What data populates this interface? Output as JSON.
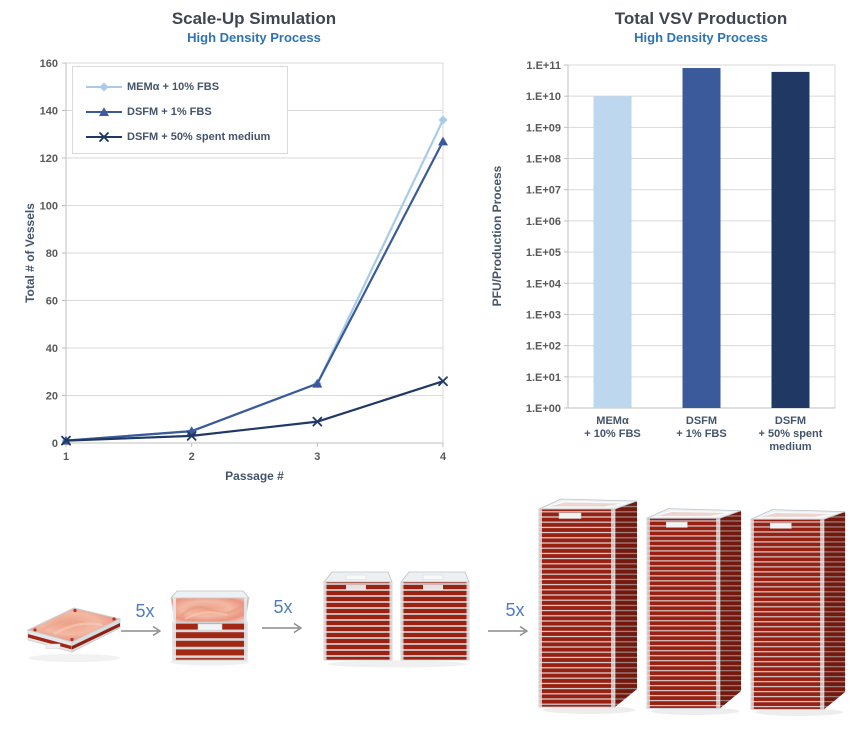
{
  "chart_data": [
    {
      "type": "line",
      "title": "Scale-Up Simulation",
      "subtitle": "High Density Process",
      "xlabel": "Passage #",
      "ylabel": "Total # of Vessels",
      "x": [
        1,
        2,
        3,
        4
      ],
      "ylim": [
        0,
        160
      ],
      "ytick_step": 20,
      "grid": true,
      "legend_position": "top-left-inside",
      "series": [
        {
          "name": "MEMα + 10% FBS",
          "marker": "diamond",
          "color": "#a9cbe8",
          "values": [
            1,
            5,
            25,
            136
          ]
        },
        {
          "name": "DSFM + 1% FBS",
          "marker": "triangle",
          "color": "#3b5a9b",
          "values": [
            1,
            5,
            25,
            127
          ]
        },
        {
          "name": "DSFM + 50% spent medium",
          "marker": "x",
          "color": "#1f3864",
          "values": [
            1,
            3,
            9,
            26
          ]
        }
      ]
    },
    {
      "type": "bar",
      "title": "Total VSV Production",
      "subtitle": "High Density Process",
      "xlabel": "",
      "ylabel": "PFU/Production Process",
      "yscale": "log",
      "ylim": [
        1,
        100000000000
      ],
      "ytick_labels": [
        "1.E+00",
        "1.E+01",
        "1.E+02",
        "1.E+03",
        "1.E+04",
        "1.E+05",
        "1.E+06",
        "1.E+07",
        "1.E+08",
        "1.E+09",
        "1.E+10",
        "1.E+11"
      ],
      "grid": true,
      "categories": [
        [
          "MEMα",
          "+ 10% FBS"
        ],
        [
          "DSFM",
          "+ 1% FBS"
        ],
        [
          "DSFM",
          "+ 50% spent",
          "medium"
        ]
      ],
      "values": [
        10000000000.0,
        80000000000.0,
        60000000000.0
      ],
      "colors": [
        "#bdd7ee",
        "#3b5a9b",
        "#1f3864"
      ]
    }
  ],
  "scale_up": {
    "arrow_labels": [
      "5x",
      "5x",
      "5x"
    ],
    "vessel_icons": [
      "cell-culture-tray-1-layer",
      "cell-stack-5-layer",
      "cell-stack-10-layer-double",
      "cell-stack-40-layer-x3"
    ]
  },
  "colors": {
    "title": "#3f4650",
    "subtitle": "#2e74b5",
    "axis_label": "#44546a",
    "tick_label": "#595959",
    "grid": "#d9d9d9",
    "axis_line": "#bfbfbf",
    "arrow_label": "#4f7dbe",
    "arrow": "#8c8c8c"
  }
}
